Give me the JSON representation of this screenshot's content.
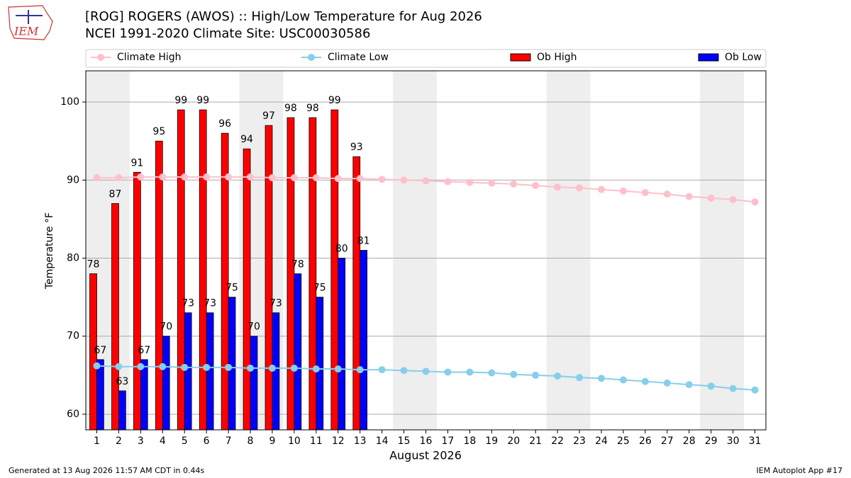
{
  "chart_data": {
    "type": "bar",
    "title": "[ROG] ROGERS (AWOS) :: High/Low Temperature for Aug 2026",
    "subtitle": "NCEI 1991-2020 Climate Site: USC00030586",
    "xlabel": "August 2026",
    "ylabel": "Temperature °F",
    "footer_left": "Generated at 13 Aug 2026 11:57 AM CDT in 0.44s",
    "footer_right": "IEM Autoplot App #17",
    "logo": "IEM",
    "categories": [
      "1",
      "2",
      "3",
      "4",
      "5",
      "6",
      "7",
      "8",
      "9",
      "10",
      "11",
      "12",
      "13",
      "14",
      "15",
      "16",
      "17",
      "18",
      "19",
      "20",
      "21",
      "22",
      "23",
      "24",
      "25",
      "26",
      "27",
      "28",
      "29",
      "30",
      "31"
    ],
    "series": [
      {
        "name": "Climate High",
        "kind": "line",
        "color": "#ffc0cb",
        "values": [
          90.3,
          90.3,
          90.4,
          90.4,
          90.4,
          90.4,
          90.4,
          90.4,
          90.3,
          90.3,
          90.3,
          90.2,
          90.2,
          90.1,
          90.0,
          89.9,
          89.8,
          89.7,
          89.6,
          89.5,
          89.3,
          89.1,
          89.0,
          88.8,
          88.6,
          88.4,
          88.2,
          87.9,
          87.7,
          87.5,
          87.2
        ]
      },
      {
        "name": "Climate Low",
        "kind": "line",
        "color": "#87ceeb",
        "values": [
          66.2,
          66.1,
          66.1,
          66.1,
          66.0,
          66.0,
          66.0,
          65.9,
          65.9,
          65.9,
          65.8,
          65.8,
          65.7,
          65.7,
          65.6,
          65.5,
          65.4,
          65.4,
          65.3,
          65.1,
          65.0,
          64.9,
          64.7,
          64.6,
          64.4,
          64.2,
          64.0,
          63.8,
          63.6,
          63.3,
          63.1
        ]
      },
      {
        "name": "Ob High",
        "kind": "bar",
        "color": "#ff0000",
        "values": [
          78,
          87,
          91,
          95,
          99,
          99,
          96,
          94,
          97,
          98,
          98,
          99,
          93,
          null,
          null,
          null,
          null,
          null,
          null,
          null,
          null,
          null,
          null,
          null,
          null,
          null,
          null,
          null,
          null,
          null,
          null
        ]
      },
      {
        "name": "Ob Low",
        "kind": "bar",
        "color": "#0000ff",
        "values": [
          67,
          63,
          67,
          70,
          73,
          73,
          75,
          70,
          73,
          78,
          75,
          80,
          81,
          null,
          null,
          null,
          null,
          null,
          null,
          null,
          null,
          null,
          null,
          null,
          null,
          null,
          null,
          null,
          null,
          null,
          null
        ]
      }
    ],
    "ylim": [
      58,
      104
    ],
    "yticks": [
      60,
      70,
      80,
      90,
      100
    ],
    "grid": true
  }
}
